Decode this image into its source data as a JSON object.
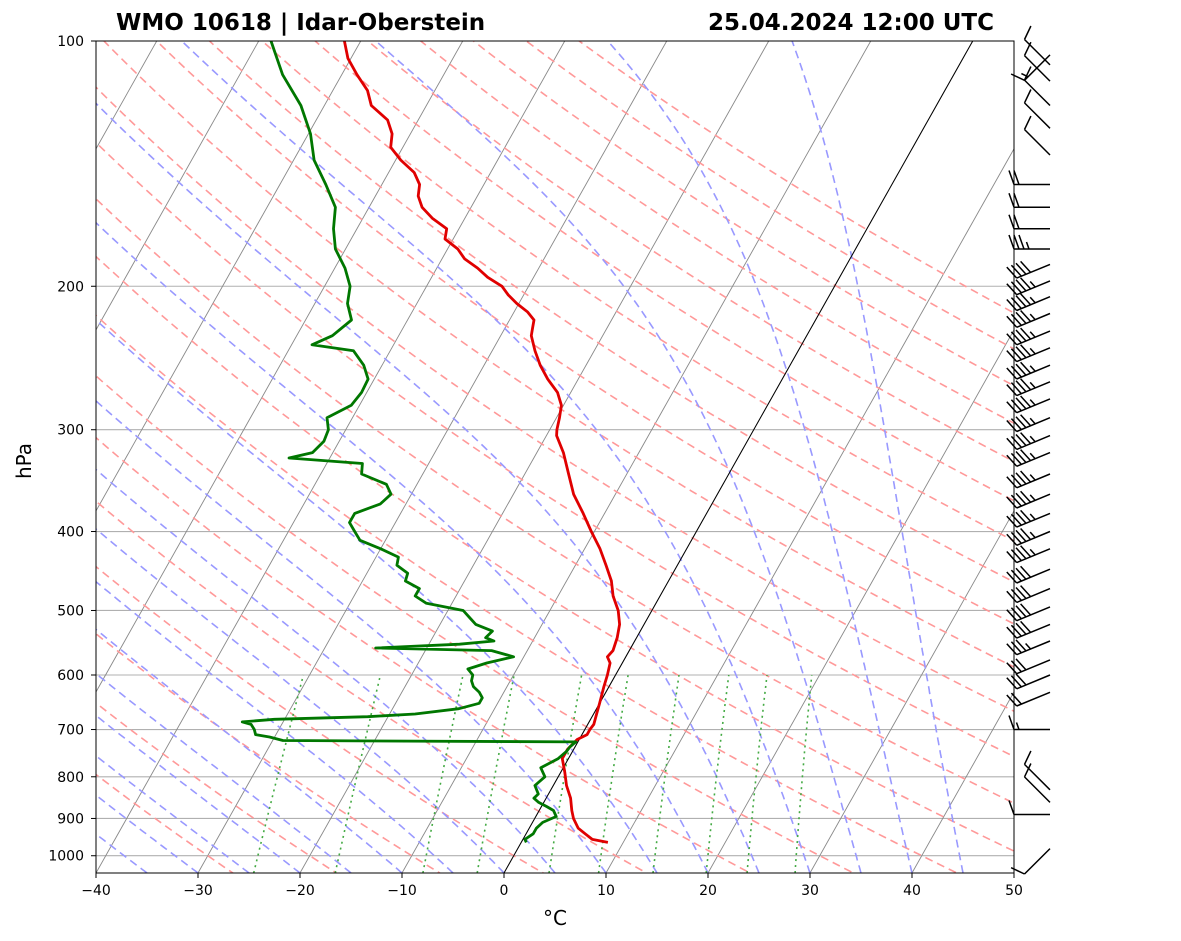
{
  "chart_data": {
    "type": "skew-t log-p",
    "title_left": "WMO 10618 | Idar-Oberstein",
    "title_right": "25.04.2024 12:00 UTC",
    "xlabel": "°C",
    "ylabel": "hPa",
    "xlim": [
      -40,
      50
    ],
    "ylim": [
      1050,
      100
    ],
    "xticks": [
      -40,
      -30,
      -20,
      -10,
      0,
      10,
      20,
      30,
      40,
      50
    ],
    "xtick_labels": [
      "−40",
      "−30",
      "−20",
      "−10",
      "0",
      "10",
      "20",
      "30",
      "40",
      "50"
    ],
    "yticks": [
      1000,
      900,
      800,
      700,
      600,
      500,
      400,
      300,
      200,
      100
    ],
    "ytick_labels": [
      "1000",
      "900",
      "800",
      "700",
      "600",
      "500",
      "400",
      "300",
      "200",
      "100"
    ],
    "skew_degC_per_decade": 45,
    "isotherms_degC": [
      -150,
      -140,
      -130,
      -120,
      -110,
      -100,
      -90,
      -80,
      -70,
      -60,
      -50,
      -40,
      -30,
      -20,
      -10,
      0,
      10,
      20,
      30,
      40,
      50
    ],
    "dry_adiabats_thetaC": [
      -30,
      -20,
      -10,
      0,
      10,
      20,
      30,
      40,
      50,
      60,
      70,
      80,
      90,
      100,
      110,
      120,
      130,
      140,
      150,
      160,
      170,
      180
    ],
    "moist_adiabats_startC": [
      -35,
      -30,
      -25,
      -20,
      -15,
      -10,
      -5,
      0,
      5,
      10,
      15,
      20,
      25,
      30,
      35,
      40,
      45
    ],
    "mixing_ratios_gkg": [
      0.5,
      1,
      2,
      3,
      5,
      7,
      10,
      14,
      18,
      24
    ],
    "highlight_isotherm_degC": 0,
    "colors": {
      "temperature": "#e00000",
      "dewpoint": "#007700",
      "dry_adiabat": "#ff9999",
      "moist_adiabat": "#9999ff",
      "mixing_ratio": "#44aa44",
      "isotherm": "#888888",
      "grid": "#b0b0b0"
    },
    "series": [
      {
        "name": "Temperature",
        "points": [
          [
            963,
            8.5
          ],
          [
            955,
            6.8
          ],
          [
            940,
            5.8
          ],
          [
            925,
            4.8
          ],
          [
            900,
            3.8
          ],
          [
            880,
            3.2
          ],
          [
            850,
            2.4
          ],
          [
            820,
            1.3
          ],
          [
            790,
            0.4
          ],
          [
            760,
            -0.6
          ],
          [
            740,
            -0.6
          ],
          [
            720,
            -0.2
          ],
          [
            710,
            0.5
          ],
          [
            700,
            0.5
          ],
          [
            690,
            0.6
          ],
          [
            670,
            0.3
          ],
          [
            650,
            0.0
          ],
          [
            620,
            -0.5
          ],
          [
            600,
            -0.8
          ],
          [
            580,
            -1.2
          ],
          [
            570,
            -1.8
          ],
          [
            560,
            -1.6
          ],
          [
            540,
            -1.9
          ],
          [
            520,
            -2.4
          ],
          [
            500,
            -3.3
          ],
          [
            480,
            -4.6
          ],
          [
            460,
            -5.6
          ],
          [
            440,
            -7.0
          ],
          [
            420,
            -8.5
          ],
          [
            400,
            -10.3
          ],
          [
            380,
            -12.1
          ],
          [
            360,
            -14.1
          ],
          [
            340,
            -15.7
          ],
          [
            320,
            -17.4
          ],
          [
            305,
            -19.0
          ],
          [
            300,
            -19.3
          ],
          [
            290,
            -19.7
          ],
          [
            280,
            -20.2
          ],
          [
            270,
            -21.3
          ],
          [
            260,
            -23.0
          ],
          [
            250,
            -24.5
          ],
          [
            240,
            -25.8
          ],
          [
            230,
            -27.0
          ],
          [
            225,
            -27.3
          ],
          [
            220,
            -27.6
          ],
          [
            215,
            -28.7
          ],
          [
            210,
            -30.2
          ],
          [
            205,
            -31.5
          ],
          [
            200,
            -32.6
          ],
          [
            195,
            -34.5
          ],
          [
            190,
            -36.0
          ],
          [
            185,
            -37.8
          ],
          [
            180,
            -39.0
          ],
          [
            175,
            -40.8
          ],
          [
            170,
            -41.2
          ],
          [
            165,
            -43.2
          ],
          [
            160,
            -44.8
          ],
          [
            155,
            -45.8
          ],
          [
            150,
            -46.3
          ],
          [
            145,
            -47.5
          ],
          [
            140,
            -49.5
          ],
          [
            135,
            -51.2
          ],
          [
            130,
            -51.8
          ],
          [
            125,
            -53.0
          ],
          [
            120,
            -55.4
          ],
          [
            115,
            -56.6
          ],
          [
            110,
            -58.5
          ],
          [
            105,
            -60.3
          ],
          [
            100,
            -61.6
          ]
        ]
      },
      {
        "name": "Dewpoint",
        "points": [
          [
            963,
            0.5
          ],
          [
            955,
            0.2
          ],
          [
            940,
            0.7
          ],
          [
            925,
            0.7
          ],
          [
            910,
            1.0
          ],
          [
            895,
            2.0
          ],
          [
            880,
            1.4
          ],
          [
            870,
            0.5
          ],
          [
            860,
            -0.5
          ],
          [
            850,
            -1.2
          ],
          [
            840,
            -1.0
          ],
          [
            820,
            -1.8
          ],
          [
            800,
            -1.3
          ],
          [
            780,
            -2.2
          ],
          [
            760,
            -1.0
          ],
          [
            745,
            -0.6
          ],
          [
            735,
            -0.5
          ],
          [
            725,
            -0.2
          ],
          [
            722,
            -29.0
          ],
          [
            715,
            -30.5
          ],
          [
            710,
            -32.0
          ],
          [
            700,
            -32.4
          ],
          [
            690,
            -33.0
          ],
          [
            685,
            -34.0
          ],
          [
            680,
            -31.0
          ],
          [
            675,
            -22.0
          ],
          [
            670,
            -17.5
          ],
          [
            660,
            -13.5
          ],
          [
            650,
            -11.8
          ],
          [
            640,
            -11.8
          ],
          [
            630,
            -12.4
          ],
          [
            620,
            -13.3
          ],
          [
            610,
            -13.8
          ],
          [
            600,
            -14.0
          ],
          [
            590,
            -14.8
          ],
          [
            580,
            -13.3
          ],
          [
            570,
            -11.0
          ],
          [
            560,
            -13.5
          ],
          [
            556,
            -25.0
          ],
          [
            550,
            -17.0
          ],
          [
            545,
            -13.8
          ],
          [
            540,
            -14.8
          ],
          [
            530,
            -14.5
          ],
          [
            520,
            -16.5
          ],
          [
            510,
            -17.5
          ],
          [
            500,
            -18.5
          ],
          [
            490,
            -22.5
          ],
          [
            480,
            -24.0
          ],
          [
            470,
            -24.0
          ],
          [
            460,
            -25.8
          ],
          [
            450,
            -26.0
          ],
          [
            440,
            -27.5
          ],
          [
            430,
            -27.8
          ],
          [
            420,
            -30.0
          ],
          [
            410,
            -32.5
          ],
          [
            400,
            -33.5
          ],
          [
            390,
            -34.5
          ],
          [
            380,
            -34.5
          ],
          [
            370,
            -32.5
          ],
          [
            360,
            -32.0
          ],
          [
            350,
            -33.0
          ],
          [
            340,
            -36.0
          ],
          [
            330,
            -36.5
          ],
          [
            325,
            -44.0
          ],
          [
            320,
            -42.0
          ],
          [
            310,
            -41.5
          ],
          [
            300,
            -41.7
          ],
          [
            290,
            -42.5
          ],
          [
            280,
            -40.8
          ],
          [
            270,
            -40.5
          ],
          [
            260,
            -40.6
          ],
          [
            250,
            -41.8
          ],
          [
            240,
            -43.6
          ],
          [
            236,
            -48.0
          ],
          [
            230,
            -46.5
          ],
          [
            220,
            -45.5
          ],
          [
            210,
            -46.8
          ],
          [
            200,
            -47.5
          ],
          [
            190,
            -49.0
          ],
          [
            180,
            -51.0
          ],
          [
            170,
            -52.3
          ],
          [
            160,
            -53.3
          ],
          [
            150,
            -55.5
          ],
          [
            140,
            -58.0
          ],
          [
            130,
            -59.8
          ],
          [
            120,
            -62.3
          ],
          [
            110,
            -65.8
          ],
          [
            100,
            -68.8
          ]
        ]
      }
    ],
    "wind_barbs": [
      {
        "p": 980,
        "speed_kt": 10,
        "dir": "SW"
      },
      {
        "p": 890,
        "speed_kt": 10,
        "dir": "W"
      },
      {
        "p": 860,
        "speed_kt": 10,
        "dir": "NW"
      },
      {
        "p": 830,
        "speed_kt": 10,
        "dir": "NW"
      },
      {
        "p": 700,
        "speed_kt": 15,
        "dir": "W"
      },
      {
        "p": 630,
        "speed_kt": 20,
        "dir": "WSW"
      },
      {
        "p": 600,
        "speed_kt": 30,
        "dir": "WSW"
      },
      {
        "p": 575,
        "speed_kt": 30,
        "dir": "WSW"
      },
      {
        "p": 545,
        "speed_kt": 35,
        "dir": "WSW"
      },
      {
        "p": 520,
        "speed_kt": 40,
        "dir": "WSW"
      },
      {
        "p": 495,
        "speed_kt": 40,
        "dir": "WSW"
      },
      {
        "p": 470,
        "speed_kt": 40,
        "dir": "WSW"
      },
      {
        "p": 445,
        "speed_kt": 40,
        "dir": "WSW"
      },
      {
        "p": 420,
        "speed_kt": 45,
        "dir": "WSW"
      },
      {
        "p": 400,
        "speed_kt": 45,
        "dir": "WSW"
      },
      {
        "p": 380,
        "speed_kt": 45,
        "dir": "WSW"
      },
      {
        "p": 360,
        "speed_kt": 45,
        "dir": "WSW"
      },
      {
        "p": 340,
        "speed_kt": 45,
        "dir": "WSW"
      },
      {
        "p": 320,
        "speed_kt": 45,
        "dir": "WSW"
      },
      {
        "p": 305,
        "speed_kt": 45,
        "dir": "WSW"
      },
      {
        "p": 290,
        "speed_kt": 45,
        "dir": "WSW"
      },
      {
        "p": 275,
        "speed_kt": 45,
        "dir": "WSW"
      },
      {
        "p": 262,
        "speed_kt": 45,
        "dir": "WSW"
      },
      {
        "p": 250,
        "speed_kt": 45,
        "dir": "WSW"
      },
      {
        "p": 238,
        "speed_kt": 45,
        "dir": "WSW"
      },
      {
        "p": 227,
        "speed_kt": 45,
        "dir": "WSW"
      },
      {
        "p": 216,
        "speed_kt": 45,
        "dir": "WSW"
      },
      {
        "p": 206,
        "speed_kt": 45,
        "dir": "WSW"
      },
      {
        "p": 197,
        "speed_kt": 45,
        "dir": "WSW"
      },
      {
        "p": 188,
        "speed_kt": 40,
        "dir": "WSW"
      },
      {
        "p": 180,
        "speed_kt": 35,
        "dir": "W"
      },
      {
        "p": 170,
        "speed_kt": 20,
        "dir": "W"
      },
      {
        "p": 160,
        "speed_kt": 20,
        "dir": "W"
      },
      {
        "p": 150,
        "speed_kt": 20,
        "dir": "W"
      },
      {
        "p": 138,
        "speed_kt": 10,
        "dir": "NW"
      },
      {
        "p": 128,
        "speed_kt": 10,
        "dir": "NW"
      },
      {
        "p": 120,
        "speed_kt": 10,
        "dir": "NW"
      },
      {
        "p": 112,
        "speed_kt": 10,
        "dir": "NW"
      },
      {
        "p": 107,
        "speed_kt": 10,
        "dir": "NW"
      },
      {
        "p": 104,
        "speed_kt": 15,
        "dir": "SW"
      }
    ]
  }
}
